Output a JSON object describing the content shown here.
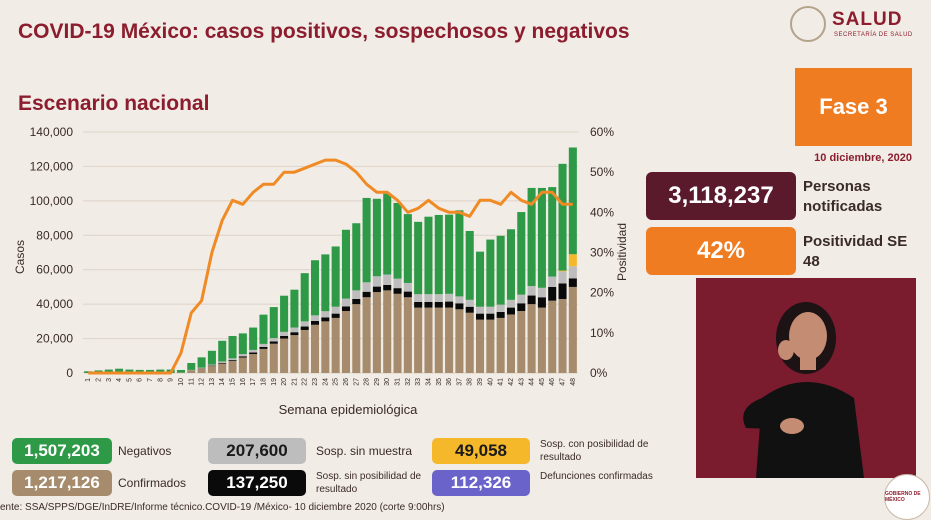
{
  "header": {
    "title": "COVID-19 México: casos positivos, sospechosos y negativos",
    "subtitle": "Escenario nacional",
    "logo_text": "SALUD",
    "logo_subtext": "SECRETARÍA DE SALUD"
  },
  "phase": {
    "label": "Fase 3",
    "date": "10 diciembre, 2020"
  },
  "kpis": [
    {
      "value": "3,118,237",
      "label": "Personas notificadas",
      "color": "#5a1a2c"
    },
    {
      "value": "42%",
      "label": "Positividad SE 48",
      "color": "#f07c22"
    }
  ],
  "legend_stats": [
    {
      "value": "1,507,203",
      "label": "Negativos",
      "color": "#2e9a48"
    },
    {
      "value": "207,600",
      "label": "Sosp. sin muestra",
      "color": "#bdbdbd"
    },
    {
      "value": "49,058",
      "label": "Sosp. con posibilidad de resultado",
      "color": "#f5b82a"
    },
    {
      "value": "1,217,126",
      "label": "Confirmados",
      "color": "#a68c6d"
    },
    {
      "value": "137,250",
      "label": "Sosp. sin posibilidad de resultado",
      "color": "#0a0a0a"
    },
    {
      "value": "112,326",
      "label": "Defunciones confirmadas",
      "color": "#6a63c9"
    }
  ],
  "footer": "ente: SSA/SPPS/DGE/InDRE/Informe técnico.COVID-19 /México- 10 diciembre 2020 (corte 9:00hrs)",
  "gob_logo": "GOBIERNO DE MÉXICO",
  "chart_data": {
    "type": "bar",
    "xlabel": "Semana epidemiológica",
    "ylabel": "Casos",
    "y2label": "Positividad",
    "ylim": [
      0,
      140000
    ],
    "y2lim": [
      0,
      60
    ],
    "yticks": [
      "0",
      "20,000",
      "40,000",
      "60,000",
      "80,000",
      "100,000",
      "120,000",
      "140,000"
    ],
    "y2ticks": [
      "0%",
      "10%",
      "20%",
      "30%",
      "40%",
      "50%",
      "60%"
    ],
    "categories": [
      "1",
      "2",
      "3",
      "4",
      "5",
      "6",
      "7",
      "8",
      "9",
      "10",
      "11",
      "12",
      "13",
      "14",
      "15",
      "16",
      "17",
      "18",
      "19",
      "20",
      "21",
      "22",
      "23",
      "24",
      "25",
      "26",
      "27",
      "28",
      "29",
      "30",
      "31",
      "32",
      "33",
      "34",
      "35",
      "36",
      "37",
      "38",
      "39",
      "40",
      "41",
      "42",
      "43",
      "44",
      "45",
      "46",
      "47",
      "48"
    ],
    "series": [
      {
        "name": "Confirmados",
        "color": "#a68c6d",
        "values": [
          0,
          0,
          0,
          0,
          0,
          0,
          0,
          0,
          0,
          200,
          1500,
          2500,
          4000,
          5500,
          7000,
          9000,
          11000,
          14000,
          17000,
          20000,
          22000,
          25000,
          28000,
          30000,
          32000,
          36000,
          40000,
          44000,
          47000,
          48000,
          46000,
          44000,
          38000,
          38000,
          38000,
          38000,
          37000,
          35000,
          31000,
          31000,
          32000,
          34000,
          36000,
          40000,
          38000,
          42000,
          43000,
          50000
        ]
      },
      {
        "name": "Sosp. sin posibilidad de resultado",
        "color": "#0a0a0a",
        "values": [
          0,
          0,
          0,
          0,
          0,
          0,
          0,
          0,
          0,
          0,
          100,
          200,
          300,
          400,
          500,
          700,
          900,
          1100,
          1300,
          1500,
          1700,
          2000,
          2200,
          2300,
          2500,
          2700,
          3000,
          3200,
          3200,
          3200,
          3300,
          3300,
          3300,
          3300,
          3300,
          3500,
          3500,
          3500,
          3500,
          3500,
          3500,
          4000,
          4500,
          5000,
          6000,
          8000,
          9000,
          5000
        ]
      },
      {
        "name": "Sosp. sin muestra",
        "color": "#bdbdbd",
        "values": [
          0,
          0,
          0,
          0,
          0,
          0,
          0,
          0,
          0,
          50,
          200,
          400,
          600,
          800,
          1000,
          1300,
          1500,
          1800,
          2000,
          2400,
          2700,
          3000,
          3300,
          3600,
          4000,
          4500,
          5000,
          5500,
          6000,
          6000,
          5500,
          5000,
          4500,
          4500,
          4500,
          4500,
          4000,
          4000,
          4000,
          4000,
          4200,
          4500,
          5000,
          5500,
          5500,
          6000,
          7000,
          7000
        ]
      },
      {
        "name": "Sosp. con posibilidad de resultado",
        "color": "#f5b82a",
        "values": [
          0,
          0,
          0,
          0,
          0,
          0,
          0,
          0,
          0,
          0,
          0,
          0,
          0,
          0,
          0,
          0,
          0,
          0,
          0,
          0,
          0,
          0,
          0,
          0,
          0,
          0,
          0,
          0,
          0,
          0,
          0,
          0,
          0,
          0,
          0,
          0,
          0,
          0,
          0,
          0,
          0,
          0,
          0,
          0,
          0,
          0,
          500,
          7000
        ]
      },
      {
        "name": "Negativos",
        "color": "#2e9a48",
        "values": [
          1000,
          1500,
          2000,
          2500,
          2000,
          1800,
          1800,
          2000,
          2000,
          1500,
          4000,
          6000,
          8000,
          12000,
          13000,
          12000,
          13000,
          17000,
          18000,
          21000,
          22000,
          28000,
          32000,
          33000,
          35000,
          40000,
          39000,
          49000,
          45000,
          47000,
          44000,
          40000,
          42000,
          45000,
          46000,
          46000,
          50000,
          40000,
          32000,
          39000,
          40000,
          41000,
          48000,
          57000,
          58000,
          52000,
          62000,
          62000
        ]
      }
    ],
    "line": {
      "name": "Positividad",
      "color": "#f08a24",
      "values": [
        0,
        0,
        0,
        0,
        0,
        0,
        0,
        0,
        0,
        5,
        15,
        18,
        30,
        38,
        43,
        42,
        45,
        47,
        47,
        50,
        50,
        51,
        52,
        53,
        53,
        52,
        50,
        47,
        45,
        45,
        43,
        40,
        41,
        43,
        41,
        40,
        40,
        39,
        43,
        43,
        42,
        45,
        43,
        42,
        45,
        45,
        42,
        42
      ]
    }
  }
}
